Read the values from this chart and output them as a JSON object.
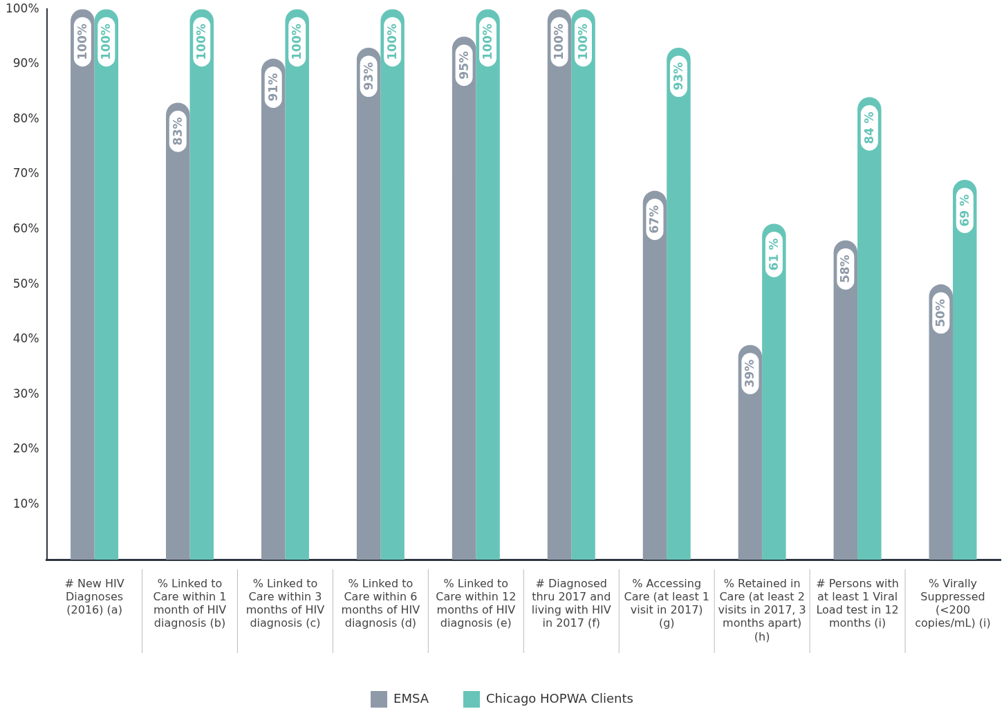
{
  "chart_data": {
    "type": "bar",
    "categories": [
      "# New HIV Diagnoses (2016) (a)",
      "% Linked to Care within 1 month of HIV diagnosis (b)",
      "% Linked to Care within 3 months of HIV diagnosis (c)",
      "% Linked to Care within 6 months of HIV diagnosis (d)",
      "% Linked to Care within 12 months of HIV diagnosis (e)",
      "# Diagnosed thru 2017 and living with HIV in 2017 (f)",
      "% Accessing Care (at least 1 visit in 2017) (g)",
      "% Retained in Care (at least 2 visits in 2017, 3 months apart) (h)",
      "# Persons with at least 1 Viral Load test in 12 months (i)",
      "% Virally Suppressed (<200 copies/mL) (i)"
    ],
    "series": [
      {
        "name": "EMSA",
        "color": "#8f9aa8",
        "values": [
          100,
          83,
          91,
          93,
          95,
          100,
          67,
          39,
          58,
          50
        ],
        "value_labels": [
          "100%",
          "83%",
          "91%",
          "93%",
          "95%",
          "100%",
          "67%",
          "39%",
          "58%",
          "50%"
        ]
      },
      {
        "name": "Chicago HOPWA Clients",
        "color": "#66c5b8",
        "values": [
          100,
          100,
          100,
          100,
          100,
          100,
          93,
          61,
          84,
          69
        ],
        "value_labels": [
          "100%",
          "100%",
          "100%",
          "100%",
          "100%",
          "100%",
          "93%",
          "61 %",
          "84 %",
          "69 %"
        ]
      }
    ],
    "ylim": [
      0,
      100
    ],
    "yticks": [
      {
        "value": 0,
        "label": null
      },
      {
        "value": 10,
        "label": "10%"
      },
      {
        "value": 20,
        "label": "20%"
      },
      {
        "value": 30,
        "label": "30%"
      },
      {
        "value": 40,
        "label": "40%"
      },
      {
        "value": 50,
        "label": "50%"
      },
      {
        "value": 60,
        "label": "60%"
      },
      {
        "value": 70,
        "label": "70%"
      },
      {
        "value": 80,
        "label": "80%"
      },
      {
        "value": 90,
        "label": "90%"
      },
      {
        "value": 100,
        "label": "100%"
      }
    ],
    "legend": "bottom"
  }
}
